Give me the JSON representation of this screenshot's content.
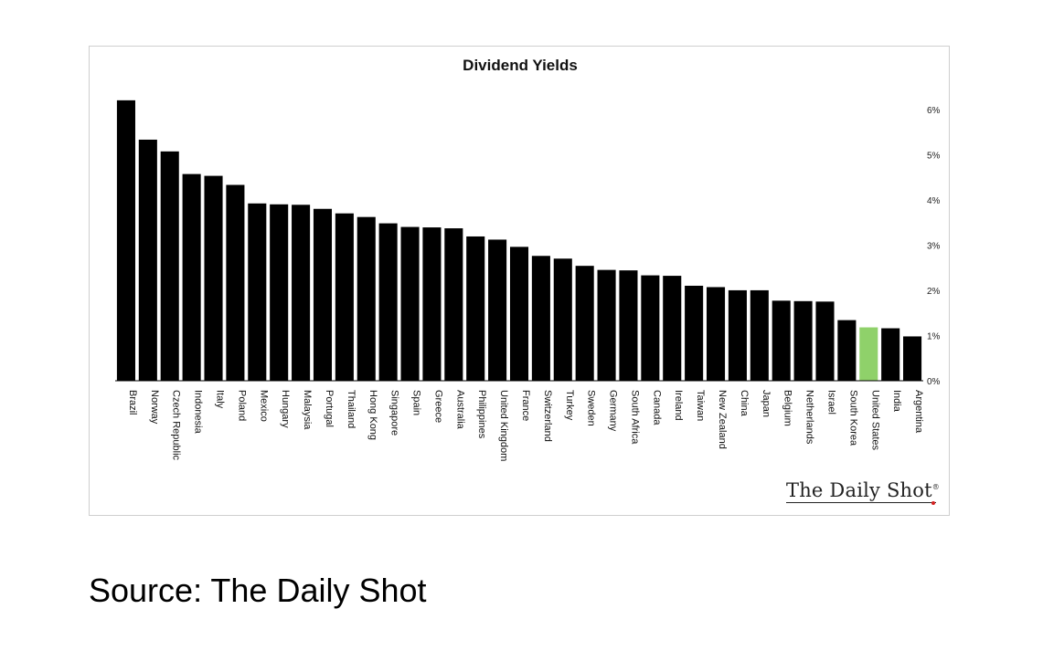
{
  "chart_data": {
    "type": "bar",
    "title": "Dividend Yields",
    "categories": [
      "Brazil",
      "Norway",
      "Czech Republic",
      "Indonesia",
      "Italy",
      "Poland",
      "Mexico",
      "Hungary",
      "Malaysia",
      "Portugal",
      "Thailand",
      "Hong Kong",
      "Singapore",
      "Spain",
      "Greece",
      "Australia",
      "Philippines",
      "United Kingdom",
      "France",
      "Switzerland",
      "Turkey",
      "Sweden",
      "Germany",
      "South Africa",
      "Canada",
      "Ireland",
      "Taiwan",
      "New Zealand",
      "China",
      "Japan",
      "Belgium",
      "Netherlands",
      "Israel",
      "South Korea",
      "United States",
      "India",
      "Argentina"
    ],
    "values": [
      6.2,
      5.33,
      5.07,
      4.57,
      4.53,
      4.33,
      3.92,
      3.9,
      3.89,
      3.8,
      3.7,
      3.62,
      3.48,
      3.4,
      3.39,
      3.37,
      3.19,
      3.12,
      2.96,
      2.76,
      2.7,
      2.54,
      2.45,
      2.44,
      2.33,
      2.32,
      2.1,
      2.07,
      2.0,
      2.0,
      1.77,
      1.76,
      1.75,
      1.34,
      1.18,
      1.16,
      0.98
    ],
    "bar_color": "#000000",
    "highlight": {
      "category": "United States",
      "color": "#8fd16a"
    },
    "yaxis": {
      "position": "right",
      "ticks": [
        "0%",
        "1%",
        "2%",
        "3%",
        "4%",
        "5%",
        "6%"
      ],
      "tick_values": [
        0,
        1,
        2,
        3,
        4,
        5,
        6
      ]
    },
    "ylim": [
      0,
      6.5
    ],
    "grid": false
  },
  "brand": "The Daily Shot",
  "brand_mark": "®",
  "source": "Source: The Daily Shot"
}
